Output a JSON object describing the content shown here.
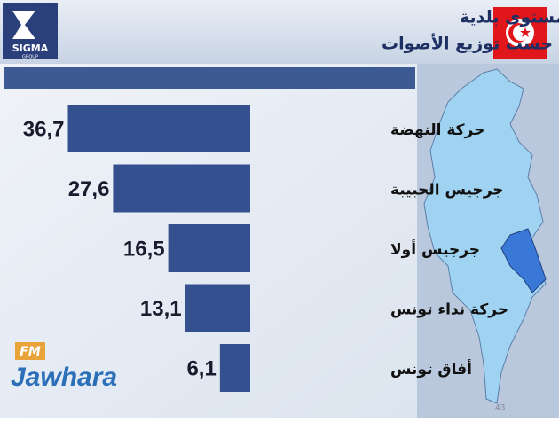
{
  "chart_data": {
    "type": "hbar",
    "title": [
      "الانتخابات البلدية تقديرات النتائج على مستوى بلدية",
      "جرجيس حسب توزيع الأصوات"
    ],
    "categories": [
      "حركة النهضة",
      "جرجيس الحبيبة",
      "جرجيس أولا",
      "حركة نداء تونس",
      "أفاق تونس"
    ],
    "values": [
      36.7,
      27.6,
      16.5,
      13.1,
      6.1
    ],
    "value_labels": [
      "36,7",
      "27,6",
      "16,5",
      "13,1",
      "6,1"
    ],
    "color": "#34508f",
    "xlim": [
      0,
      50
    ]
  },
  "branding": {
    "logo": "SIGMA",
    "logo_sub": "GROUP",
    "watermark": "Jawhara",
    "watermark_badge": "FM",
    "page_number": "43"
  }
}
